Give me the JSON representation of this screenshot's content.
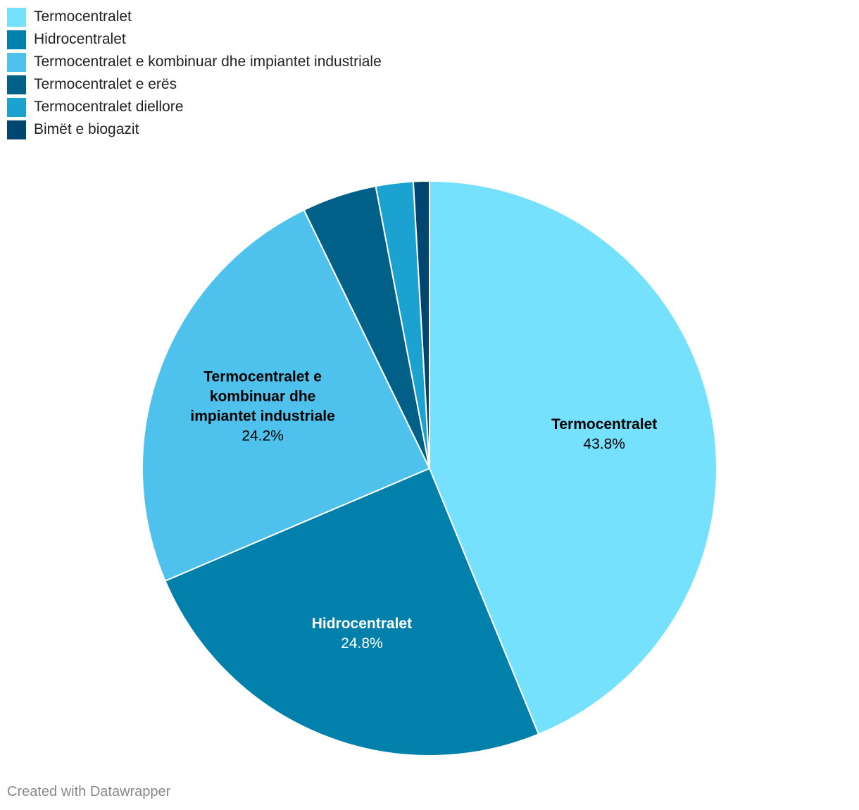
{
  "chart_data": {
    "type": "pie",
    "title": "",
    "legend_position": "top-left",
    "slices": [
      {
        "label": "Termocentralet",
        "value": 43.8,
        "value_label": "43.8%",
        "color": "#75e1fd",
        "label_lines": [
          "Termocentralet"
        ],
        "label_color": "#000000",
        "show_label": true
      },
      {
        "label": "Hidrocentralet",
        "value": 24.8,
        "value_label": "24.8%",
        "color": "#0080ab",
        "label_lines": [
          "Hidrocentralet"
        ],
        "label_color": "#ffffff",
        "show_label": true
      },
      {
        "label": "Termocentralet e kombinuar dhe impiantet industriale",
        "value": 24.2,
        "value_label": "24.2%",
        "color": "#4ec2ec",
        "label_lines": [
          "Termocentralet e",
          "kombinuar dhe",
          "impiantet industriale"
        ],
        "label_color": "#000000",
        "show_label": true
      },
      {
        "label": "Termocentralet e erës",
        "value": 4.2,
        "value_label": "",
        "color": "#006088",
        "show_label": false
      },
      {
        "label": "Termocentralet diellore",
        "value": 2.1,
        "value_label": "",
        "color": "#1ca2d1",
        "show_label": false
      },
      {
        "label": "Bimët e biogazit",
        "value": 0.9,
        "value_label": "",
        "color": "#004670",
        "show_label": false
      }
    ]
  },
  "footer": {
    "credit": "Created with Datawrapper"
  }
}
